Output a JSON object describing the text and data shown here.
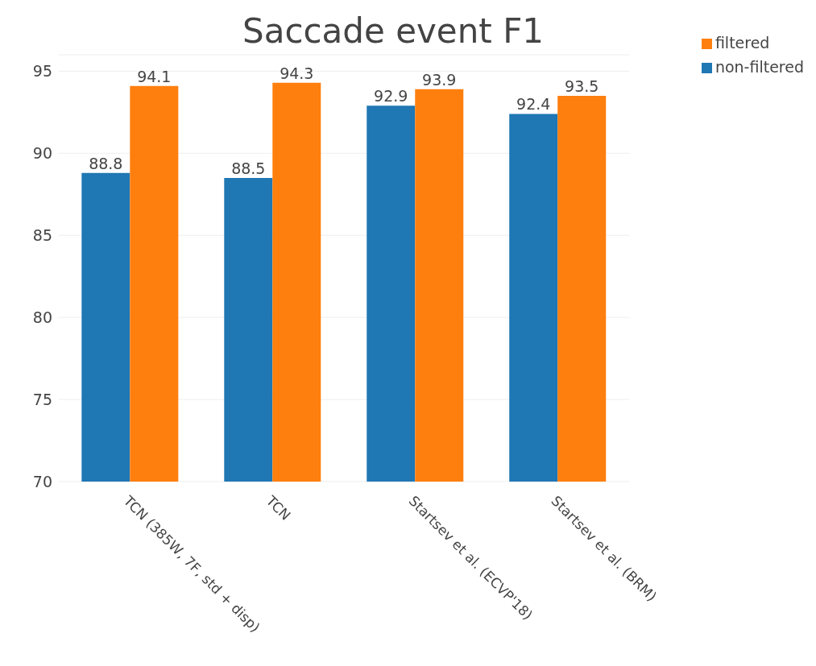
{
  "chart_data": {
    "type": "bar",
    "title": "Saccade event F1",
    "categories": [
      "TCN (385W, 7F, std + disp)",
      "TCN",
      "Startsev et al. (ECVP'18)",
      "Startsev et al. (BRM)"
    ],
    "series": [
      {
        "name": "non-filtered",
        "color": "#1f77b4",
        "values": [
          88.8,
          88.5,
          92.9,
          92.4
        ]
      },
      {
        "name": "filtered",
        "color": "#ff7f0e",
        "values": [
          94.1,
          94.3,
          93.9,
          93.5
        ]
      }
    ],
    "ylim": [
      70,
      96
    ],
    "yticks": [
      70,
      75,
      80,
      85,
      90,
      95
    ],
    "grid": "y",
    "legend": "top right",
    "data_labels": true
  }
}
